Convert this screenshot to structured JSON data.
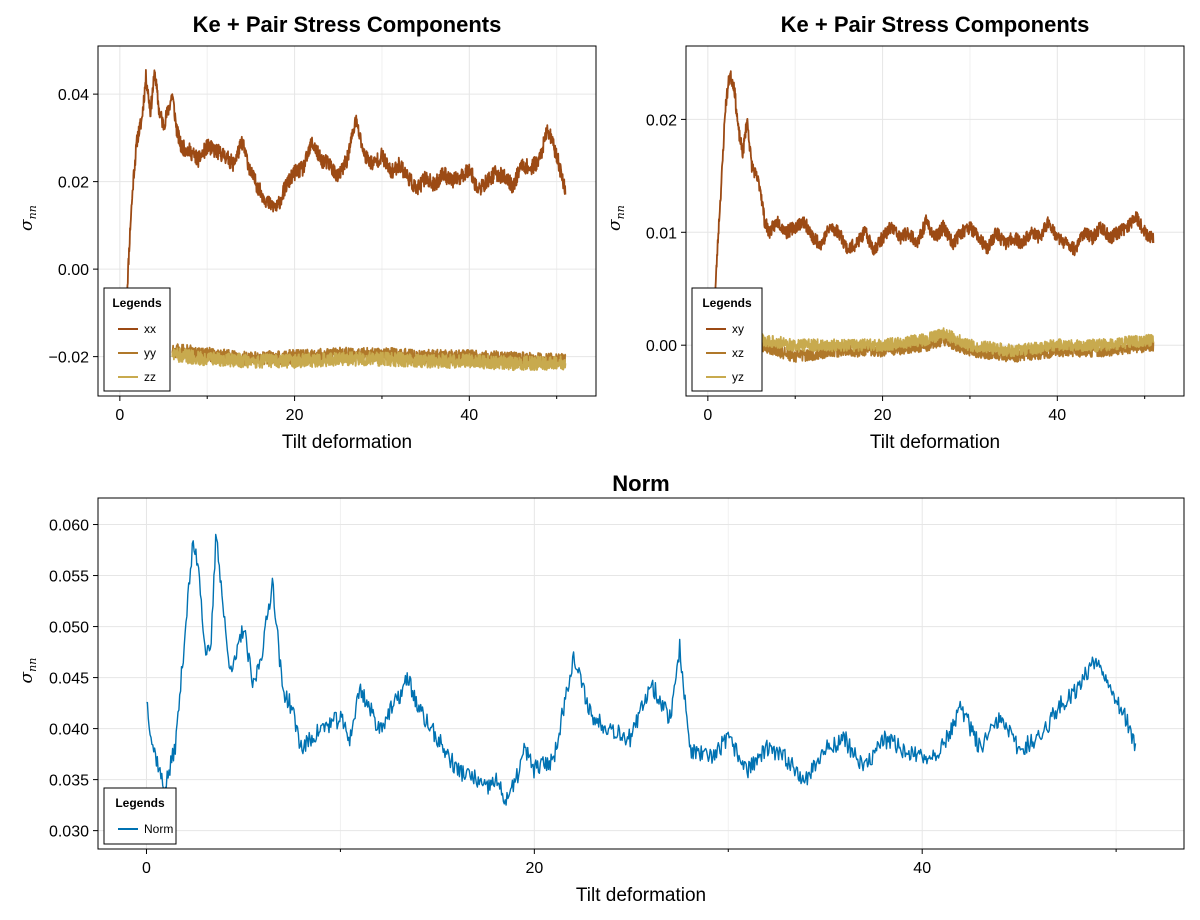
{
  "chart_data": [
    {
      "id": "stress-diagonal",
      "type": "line",
      "title": "Ke + Pair Stress Components",
      "xlabel": "Tilt deformation",
      "ylabel": "σ",
      "ylabel_sub": "nn",
      "xlim": [
        -2.5,
        54.5
      ],
      "ylim": [
        -0.029,
        0.051
      ],
      "xticks": [
        0,
        20,
        40
      ],
      "xtick_labels": [
        "0",
        "20",
        "40"
      ],
      "yticks": [
        -0.02,
        0.0,
        0.02,
        0.04
      ],
      "ytick_labels": [
        "−0.02",
        "0.00",
        "0.02",
        "0.04"
      ],
      "grid": true,
      "legend_title": "Legends",
      "legend_position": "bottom-left",
      "series": [
        {
          "name": "xx",
          "color": "#9c4a14",
          "x": [
            0.8,
            1.2,
            1.6,
            2.0,
            2.5,
            3.0,
            3.5,
            4.0,
            4.5,
            5.0,
            5.5,
            6.0,
            6.5,
            7.0,
            8,
            9,
            10,
            11,
            12,
            13,
            14,
            15,
            16,
            17,
            18,
            19,
            20,
            21,
            22,
            23,
            24,
            25,
            26,
            27,
            28,
            29,
            30,
            31,
            32,
            33,
            34,
            35,
            36,
            37,
            38,
            39,
            40,
            41,
            42,
            43,
            44,
            45,
            46,
            47,
            48,
            49,
            50,
            51
          ],
          "y": [
            -0.006,
            0.01,
            0.022,
            0.03,
            0.034,
            0.044,
            0.036,
            0.045,
            0.036,
            0.033,
            0.036,
            0.04,
            0.032,
            0.028,
            0.027,
            0.025,
            0.028,
            0.027,
            0.026,
            0.024,
            0.029,
            0.022,
            0.018,
            0.015,
            0.014,
            0.019,
            0.022,
            0.023,
            0.029,
            0.025,
            0.024,
            0.021,
            0.025,
            0.034,
            0.026,
            0.024,
            0.026,
            0.022,
            0.024,
            0.021,
            0.018,
            0.021,
            0.019,
            0.022,
            0.02,
            0.021,
            0.023,
            0.018,
            0.02,
            0.022,
            0.021,
            0.019,
            0.024,
            0.023,
            0.025,
            0.032,
            0.026,
            0.018
          ]
        },
        {
          "name": "yy",
          "color": "#b0782a",
          "x": [
            6,
            10,
            15,
            20,
            25,
            30,
            35,
            40,
            45,
            51
          ],
          "y": [
            -0.0185,
            -0.0195,
            -0.0205,
            -0.02,
            -0.0195,
            -0.0195,
            -0.02,
            -0.02,
            -0.0205,
            -0.021
          ]
        },
        {
          "name": "zz",
          "color": "#c8aa4e",
          "x": [
            6,
            10,
            15,
            20,
            25,
            30,
            35,
            40,
            45,
            51
          ],
          "y": [
            -0.0195,
            -0.0205,
            -0.021,
            -0.021,
            -0.0205,
            -0.0205,
            -0.021,
            -0.021,
            -0.0215,
            -0.0215
          ]
        }
      ]
    },
    {
      "id": "stress-offdiagonal",
      "type": "line",
      "title": "Ke + Pair Stress Components",
      "xlabel": "Tilt deformation",
      "ylabel": "σ",
      "ylabel_sub": "nn",
      "xlim": [
        -2.5,
        54.5
      ],
      "ylim": [
        -0.0045,
        0.0265
      ],
      "xticks": [
        0,
        20,
        40
      ],
      "xtick_labels": [
        "0",
        "20",
        "40"
      ],
      "yticks": [
        0.0,
        0.01,
        0.02
      ],
      "ytick_labels": [
        "0.00",
        "0.01",
        "0.02"
      ],
      "grid": true,
      "legend_title": "Legends",
      "legend_position": "bottom-left",
      "series": [
        {
          "name": "xy",
          "color": "#9c4a14",
          "x": [
            0.8,
            1.2,
            1.6,
            2.0,
            2.5,
            3.0,
            3.5,
            4.0,
            4.5,
            5.0,
            5.5,
            6.0,
            6.5,
            7.0,
            8,
            9,
            10,
            11,
            12,
            13,
            14,
            15,
            16,
            17,
            18,
            19,
            20,
            21,
            22,
            23,
            24,
            25,
            26,
            27,
            28,
            29,
            30,
            31,
            32,
            33,
            34,
            35,
            36,
            37,
            38,
            39,
            40,
            41,
            42,
            43,
            44,
            45,
            46,
            47,
            48,
            49,
            50,
            51
          ],
          "y": [
            0.004,
            0.01,
            0.015,
            0.021,
            0.024,
            0.023,
            0.019,
            0.017,
            0.02,
            0.016,
            0.015,
            0.014,
            0.011,
            0.01,
            0.011,
            0.01,
            0.0105,
            0.011,
            0.0095,
            0.009,
            0.0105,
            0.01,
            0.0085,
            0.009,
            0.01,
            0.0085,
            0.0095,
            0.0105,
            0.0095,
            0.01,
            0.009,
            0.011,
            0.0095,
            0.0105,
            0.009,
            0.01,
            0.0105,
            0.0095,
            0.0085,
            0.01,
            0.009,
            0.0095,
            0.009,
            0.01,
            0.0095,
            0.011,
            0.0095,
            0.009,
            0.0085,
            0.01,
            0.0095,
            0.0105,
            0.0095,
            0.01,
            0.0105,
            0.0115,
            0.01,
            0.0095
          ]
        },
        {
          "name": "xz",
          "color": "#b0782a",
          "x": [
            6,
            10,
            15,
            20,
            25,
            27,
            30,
            35,
            40,
            45,
            51
          ],
          "y": [
            0.0,
            -0.001,
            -0.0005,
            -0.0005,
            0.0,
            0.0005,
            -0.0005,
            -0.001,
            -0.0005,
            -0.0005,
            0.0
          ]
        },
        {
          "name": "yz",
          "color": "#c8aa4e",
          "x": [
            6,
            10,
            15,
            20,
            25,
            27,
            30,
            35,
            40,
            45,
            51
          ],
          "y": [
            0.0005,
            0.0,
            0.0,
            0.0,
            0.0005,
            0.001,
            0.0,
            -0.0005,
            0.0,
            0.0,
            0.0005
          ]
        }
      ]
    },
    {
      "id": "norm",
      "type": "line",
      "title": "Norm",
      "xlabel": "Tilt deformation",
      "ylabel": "σ",
      "ylabel_sub": "nn",
      "xlim": [
        -2.5,
        53.5
      ],
      "ylim": [
        0.0282,
        0.0626
      ],
      "xticks": [
        0,
        20,
        40
      ],
      "xtick_labels": [
        "0",
        "20",
        "40"
      ],
      "yticks": [
        0.03,
        0.035,
        0.04,
        0.045,
        0.05,
        0.055,
        0.06
      ],
      "ytick_labels": [
        "0.030",
        "0.035",
        "0.040",
        "0.045",
        "0.050",
        "0.055",
        "0.060"
      ],
      "grid": true,
      "legend_title": "Legends",
      "legend_position": "bottom-left",
      "series": [
        {
          "name": "Norm",
          "color": "#0072b2",
          "x": [
            0,
            0.3,
            0.6,
            0.9,
            1.2,
            1.5,
            1.8,
            2.1,
            2.4,
            2.7,
            3.0,
            3.3,
            3.6,
            3.9,
            4.2,
            4.5,
            5.0,
            5.5,
            6.0,
            6.5,
            7.0,
            7.5,
            8,
            9,
            10,
            10.5,
            11,
            12,
            13,
            13.5,
            14,
            15,
            16,
            17,
            17.5,
            18,
            18.5,
            19,
            19.5,
            20,
            21,
            22,
            23,
            24,
            25,
            26,
            27,
            27.5,
            28,
            29,
            30,
            31,
            32,
            33,
            34,
            35,
            36,
            37,
            38,
            39,
            40,
            41,
            42,
            43,
            44,
            45,
            46,
            47,
            48,
            49,
            50,
            50.5,
            51
          ],
          "y": [
            0.043,
            0.0385,
            0.0365,
            0.034,
            0.036,
            0.0385,
            0.045,
            0.052,
            0.058,
            0.056,
            0.048,
            0.047,
            0.0595,
            0.053,
            0.047,
            0.046,
            0.05,
            0.044,
            0.048,
            0.0545,
            0.044,
            0.042,
            0.038,
            0.04,
            0.041,
            0.039,
            0.044,
            0.04,
            0.043,
            0.045,
            0.042,
            0.039,
            0.036,
            0.035,
            0.034,
            0.035,
            0.033,
            0.0345,
            0.038,
            0.036,
            0.037,
            0.047,
            0.041,
            0.04,
            0.039,
            0.0445,
            0.041,
            0.048,
            0.038,
            0.037,
            0.039,
            0.036,
            0.038,
            0.037,
            0.035,
            0.038,
            0.039,
            0.036,
            0.039,
            0.038,
            0.037,
            0.038,
            0.042,
            0.038,
            0.041,
            0.038,
            0.039,
            0.042,
            0.044,
            0.047,
            0.043,
            0.041,
            0.038
          ]
        }
      ]
    }
  ]
}
